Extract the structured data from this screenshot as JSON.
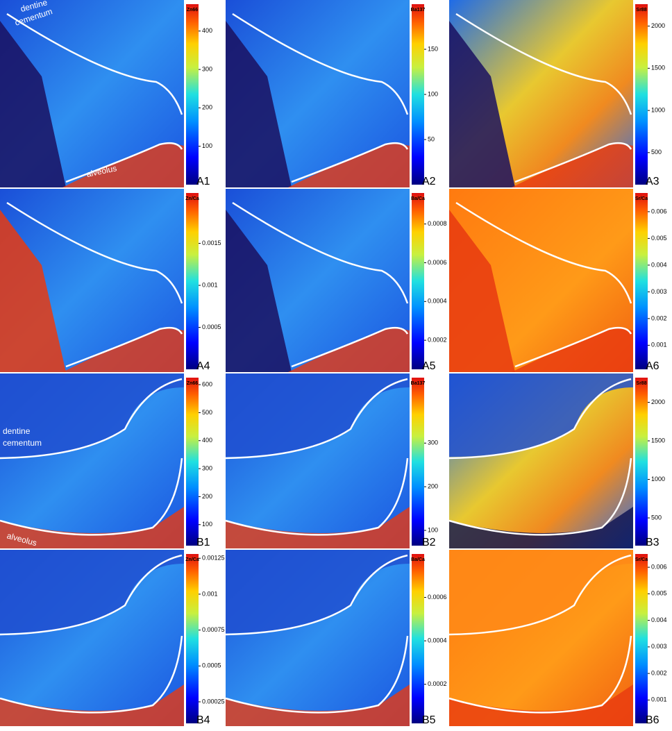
{
  "panels": [
    {
      "label": "A1",
      "colorbar_title": "Zn66",
      "range": [
        0,
        470
      ],
      "ticks": [
        100,
        200,
        300,
        400
      ],
      "annotations": [
        "dentine",
        "cementum",
        "alveolus"
      ]
    },
    {
      "label": "A2",
      "colorbar_title": "Ba137",
      "range": [
        0,
        200
      ],
      "ticks": [
        50,
        100,
        150
      ]
    },
    {
      "label": "A3",
      "colorbar_title": "Sr88",
      "range": [
        120,
        2260
      ],
      "ticks": [
        500,
        1000,
        1500,
        2000
      ]
    },
    {
      "label": "A4",
      "colorbar_title": "Zn/Ca",
      "range": [
        0,
        0.0021
      ],
      "ticks": [
        0.0005,
        0.001,
        0.0015
      ]
    },
    {
      "label": "A5",
      "colorbar_title": "Ba/Ca",
      "range": [
        5e-05,
        0.00096
      ],
      "ticks": [
        0.0002,
        0.0004,
        0.0006,
        0.0008
      ]
    },
    {
      "label": "A6",
      "colorbar_title": "Sr/Ca",
      "range": [
        0.0001,
        0.0067
      ],
      "ticks": [
        0.001,
        0.002,
        0.003,
        0.004,
        0.005,
        0.006
      ]
    },
    {
      "label": "B1",
      "colorbar_title": "Zn66",
      "range": [
        25,
        625
      ],
      "ticks": [
        100,
        200,
        300,
        400,
        500,
        600
      ],
      "annotations": [
        "dentine",
        "cementum",
        "alveolus"
      ]
    },
    {
      "label": "B2",
      "colorbar_title": "Ba137",
      "range": [
        65,
        450
      ],
      "ticks": [
        100,
        200,
        300
      ]
    },
    {
      "label": "B3",
      "colorbar_title": "Sr88",
      "range": [
        140,
        2320
      ],
      "ticks": [
        500,
        1000,
        1500,
        2000
      ]
    },
    {
      "label": "B4",
      "colorbar_title": "Zn/Ca",
      "range": [
        0.0001,
        0.00128
      ],
      "ticks": [
        0.00025,
        0.0005,
        0.00075,
        0.001,
        0.00125
      ]
    },
    {
      "label": "B5",
      "colorbar_title": "Ba/Ca",
      "range": [
        2e-05,
        0.0008
      ],
      "ticks": [
        0.0002,
        0.0004,
        0.0006
      ]
    },
    {
      "label": "B6",
      "colorbar_title": "Sr/Ca",
      "range": [
        0.00012,
        0.0065
      ],
      "ticks": [
        0.001,
        0.002,
        0.003,
        0.004,
        0.005,
        0.006
      ]
    }
  ]
}
